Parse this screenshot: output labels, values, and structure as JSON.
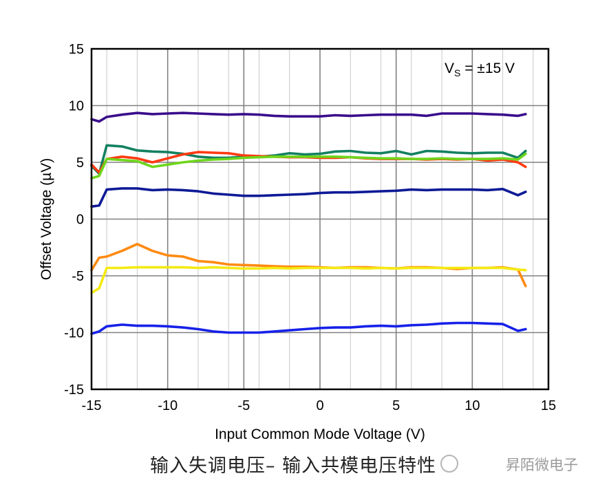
{
  "chart_data": {
    "type": "line",
    "title": "",
    "xlabel": "Input Common Mode Voltage (V)",
    "ylabel": "Offset Voltage (µV)",
    "xlim": [
      -15,
      15
    ],
    "ylim": [
      -15,
      15
    ],
    "xticks": [
      "-15",
      "-10",
      "-5",
      "0",
      "5",
      "10",
      "15"
    ],
    "yticks": [
      "15",
      "10",
      "5",
      "0",
      "-5",
      "-10",
      "-15"
    ],
    "grid": true,
    "annotation": {
      "prefix": "V",
      "subscript": "S",
      "text": " = ±15 V"
    },
    "x": [
      -15,
      -14.5,
      -14,
      -13,
      -12,
      -11,
      -10,
      -9,
      -8,
      -7,
      -6,
      -5,
      -4,
      -3,
      -2,
      -1,
      0,
      1,
      2,
      3,
      4,
      5,
      6,
      7,
      8,
      9,
      10,
      11,
      12,
      13,
      13.5
    ],
    "series": [
      {
        "name": "purple",
        "color": "#3a0d8c",
        "values": [
          8.8,
          8.6,
          9.0,
          9.2,
          9.35,
          9.25,
          9.3,
          9.35,
          9.3,
          9.25,
          9.2,
          9.25,
          9.2,
          9.1,
          9.05,
          9.05,
          9.05,
          9.15,
          9.1,
          9.15,
          9.2,
          9.2,
          9.2,
          9.1,
          9.3,
          9.3,
          9.3,
          9.25,
          9.2,
          9.1,
          9.25
        ]
      },
      {
        "name": "teal",
        "color": "#138060",
        "values": [
          4.7,
          4.0,
          6.5,
          6.4,
          6.05,
          5.95,
          5.9,
          5.75,
          5.5,
          5.4,
          5.4,
          5.5,
          5.5,
          5.6,
          5.8,
          5.7,
          5.75,
          5.95,
          6.0,
          5.85,
          5.8,
          6.0,
          5.7,
          6.0,
          5.95,
          5.85,
          5.8,
          5.85,
          5.85,
          5.4,
          6.0
        ]
      },
      {
        "name": "red",
        "color": "#ff3a12",
        "values": [
          4.8,
          4.1,
          5.3,
          5.5,
          5.35,
          5.0,
          5.35,
          5.7,
          5.9,
          5.85,
          5.8,
          5.6,
          5.55,
          5.5,
          5.45,
          5.45,
          5.4,
          5.4,
          5.45,
          5.35,
          5.3,
          5.3,
          5.3,
          5.25,
          5.3,
          5.25,
          5.3,
          5.15,
          5.25,
          5.0,
          4.6
        ]
      },
      {
        "name": "green",
        "color": "#6ed61c",
        "values": [
          3.6,
          3.8,
          5.3,
          5.2,
          5.1,
          4.6,
          4.8,
          5.0,
          5.15,
          5.25,
          5.3,
          5.4,
          5.45,
          5.5,
          5.5,
          5.5,
          5.5,
          5.5,
          5.45,
          5.4,
          5.35,
          5.35,
          5.3,
          5.3,
          5.35,
          5.3,
          5.3,
          5.3,
          5.35,
          5.25,
          5.75
        ]
      },
      {
        "name": "navy",
        "color": "#0e1a96",
        "values": [
          1.1,
          1.2,
          2.6,
          2.7,
          2.7,
          2.55,
          2.6,
          2.55,
          2.45,
          2.25,
          2.15,
          2.05,
          2.05,
          2.1,
          2.15,
          2.2,
          2.3,
          2.35,
          2.35,
          2.4,
          2.45,
          2.5,
          2.6,
          2.55,
          2.6,
          2.6,
          2.6,
          2.55,
          2.65,
          2.1,
          2.4
        ]
      },
      {
        "name": "orange",
        "color": "#ff8a12",
        "values": [
          -4.5,
          -3.4,
          -3.3,
          -2.8,
          -2.2,
          -2.8,
          -3.2,
          -3.3,
          -3.7,
          -3.8,
          -4.0,
          -4.05,
          -4.1,
          -4.15,
          -4.2,
          -4.2,
          -4.25,
          -4.3,
          -4.25,
          -4.25,
          -4.3,
          -4.35,
          -4.25,
          -4.25,
          -4.3,
          -4.4,
          -4.3,
          -4.3,
          -4.25,
          -4.45,
          -5.9
        ]
      },
      {
        "name": "yellow",
        "color": "#f4ea12",
        "values": [
          -6.5,
          -6.1,
          -4.3,
          -4.3,
          -4.25,
          -4.25,
          -4.25,
          -4.25,
          -4.3,
          -4.25,
          -4.3,
          -4.35,
          -4.35,
          -4.3,
          -4.35,
          -4.3,
          -4.3,
          -4.3,
          -4.3,
          -4.35,
          -4.3,
          -4.35,
          -4.3,
          -4.3,
          -4.3,
          -4.3,
          -4.3,
          -4.3,
          -4.3,
          -4.45,
          -4.5
        ]
      },
      {
        "name": "blue",
        "color": "#1621e8",
        "values": [
          -10.1,
          -9.9,
          -9.45,
          -9.3,
          -9.4,
          -9.4,
          -9.45,
          -9.55,
          -9.7,
          -9.9,
          -10.0,
          -10.0,
          -10.0,
          -9.9,
          -9.8,
          -9.7,
          -9.6,
          -9.55,
          -9.55,
          -9.45,
          -9.4,
          -9.45,
          -9.35,
          -9.3,
          -9.2,
          -9.15,
          -9.15,
          -9.2,
          -9.25,
          -9.85,
          -9.7
        ]
      }
    ]
  },
  "caption": "输入失调电压– 输入共模电压特性",
  "watermark": "昇陌微电子"
}
